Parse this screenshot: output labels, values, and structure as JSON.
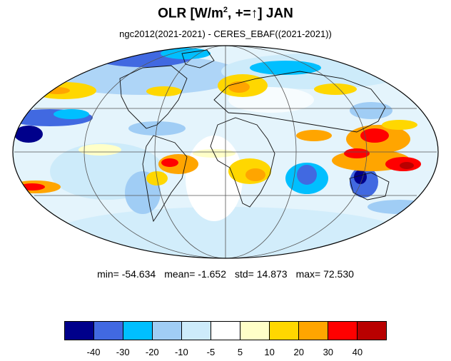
{
  "title": {
    "prefix": "OLR [W/m",
    "sup": "2",
    "suffix": ", +=↑] JAN"
  },
  "subtitle": "ngc2012(2021-2021) - CERES_EBAF((2021-2021))",
  "stats": {
    "min": "min= -54.634",
    "mean": "mean= -1.652",
    "std": "std= 14.873",
    "max": "max= 72.530"
  },
  "colorbar": {
    "colors": [
      "#00008b",
      "#4169e1",
      "#00bfff",
      "#a0cdf5",
      "#cdebfa",
      "#ffffff",
      "#ffffc8",
      "#ffd700",
      "#ffa500",
      "#ff0000",
      "#b90000"
    ],
    "labels": [
      "-40",
      "-30",
      "-20",
      "-10",
      "-5",
      "5",
      "10",
      "20",
      "30",
      "40"
    ]
  }
}
